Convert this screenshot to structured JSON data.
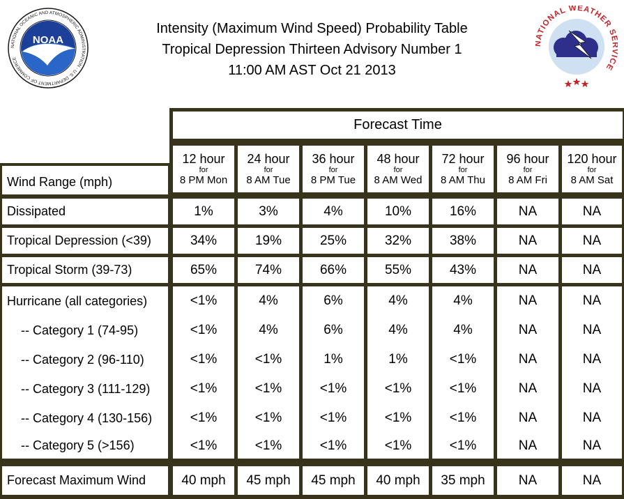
{
  "header": {
    "title_line1": "Intensity (Maximum Wind Speed) Probability Table",
    "title_line2": "Tropical Depression Thirteen Advisory Number 1",
    "title_line3": "11:00 AM AST Oct 21 2013",
    "left_logo_text": "NOAA",
    "left_logo_ring": "NATIONAL OCEANIC AND ATMOSPHERIC ADMINISTRATION · U.S. DEPARTMENT OF COMMERCE",
    "right_logo_ring": "NATIONAL WEATHER SERVICE"
  },
  "table": {
    "forecast_time_label": "Forecast Time",
    "row_header_label": "Wind Range (mph)",
    "columns": [
      {
        "hours": "12 hour",
        "for": "for",
        "when": "8 PM Mon"
      },
      {
        "hours": "24 hour",
        "for": "for",
        "when": "8 AM Tue"
      },
      {
        "hours": "36 hour",
        "for": "for",
        "when": "8 PM Tue"
      },
      {
        "hours": "48 hour",
        "for": "for",
        "when": "8 AM Wed"
      },
      {
        "hours": "72 hour",
        "for": "for",
        "when": "8 AM Thu"
      },
      {
        "hours": "96 hour",
        "for": "for",
        "when": "8 AM Fri"
      },
      {
        "hours": "120 hour",
        "for": "for",
        "when": "8 AM Sat"
      }
    ],
    "rows": [
      {
        "label": "Dissipated",
        "values": [
          "1%",
          "3%",
          "4%",
          "10%",
          "16%",
          "NA",
          "NA"
        ]
      },
      {
        "label": "Tropical Depression (<39)",
        "values": [
          "34%",
          "19%",
          "25%",
          "32%",
          "38%",
          "NA",
          "NA"
        ]
      },
      {
        "label": "Tropical Storm (39-73)",
        "values": [
          "65%",
          "74%",
          "66%",
          "55%",
          "43%",
          "NA",
          "NA"
        ]
      },
      {
        "label": "Hurricane (all categories)",
        "values": [
          "<1%",
          "4%",
          "6%",
          "4%",
          "4%",
          "NA",
          "NA"
        ]
      },
      {
        "label": "    -- Category 1 (74-95)",
        "values": [
          "<1%",
          "4%",
          "6%",
          "4%",
          "4%",
          "NA",
          "NA"
        ]
      },
      {
        "label": "    -- Category 2 (96-110)",
        "values": [
          "<1%",
          "<1%",
          "1%",
          "1%",
          "<1%",
          "NA",
          "NA"
        ]
      },
      {
        "label": "    -- Category 3 (111-129)",
        "values": [
          "<1%",
          "<1%",
          "<1%",
          "<1%",
          "<1%",
          "NA",
          "NA"
        ]
      },
      {
        "label": "    -- Category 4 (130-156)",
        "values": [
          "<1%",
          "<1%",
          "<1%",
          "<1%",
          "<1%",
          "NA",
          "NA"
        ]
      },
      {
        "label": "    -- Category 5 (>156)",
        "values": [
          "<1%",
          "<1%",
          "<1%",
          "<1%",
          "<1%",
          "NA",
          "NA"
        ]
      },
      {
        "label": "Forecast Maximum Wind",
        "values": [
          "40 mph",
          "45 mph",
          "45 mph",
          "40 mph",
          "35 mph",
          "NA",
          "NA"
        ]
      }
    ]
  }
}
